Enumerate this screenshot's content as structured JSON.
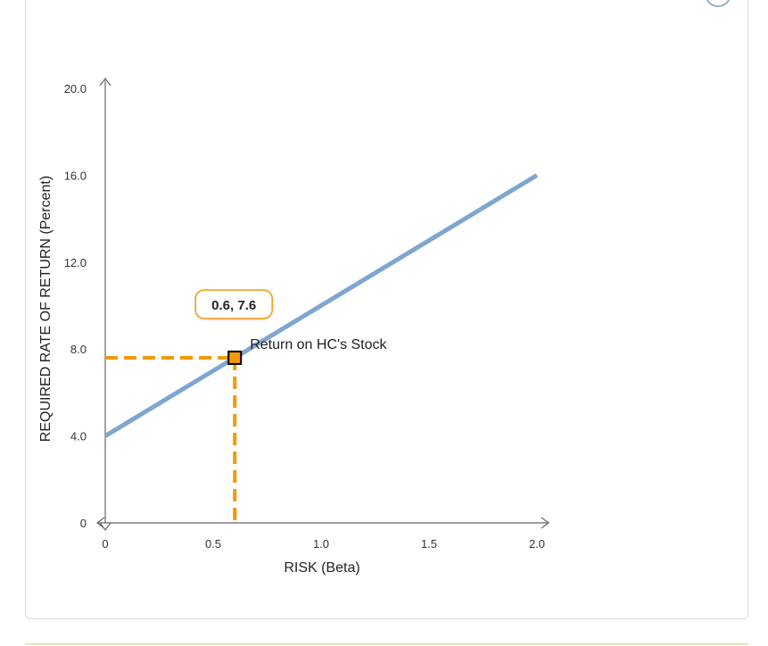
{
  "chart_data": {
    "type": "line",
    "xlabel": "RISK (Beta)",
    "ylabel": "REQUIRED RATE OF RETURN (Percent)",
    "xlim": [
      0,
      2.0
    ],
    "ylim": [
      0,
      20.0
    ],
    "x_ticks": [
      "0",
      "0.5",
      "1.0",
      "1.5",
      "2.0"
    ],
    "y_ticks": [
      "0",
      "4.0",
      "8.0",
      "12.0",
      "16.0",
      "20.0"
    ],
    "series": [
      {
        "x": [
          0,
          2.0
        ],
        "y": [
          4.0,
          16.0
        ],
        "color": "#7ea6d0"
      }
    ],
    "highlight": {
      "label": "Return on HC's Stock",
      "x": 0.6,
      "y": 7.6,
      "tooltip": "0.6, 7.6",
      "color": "#f2990a"
    }
  }
}
